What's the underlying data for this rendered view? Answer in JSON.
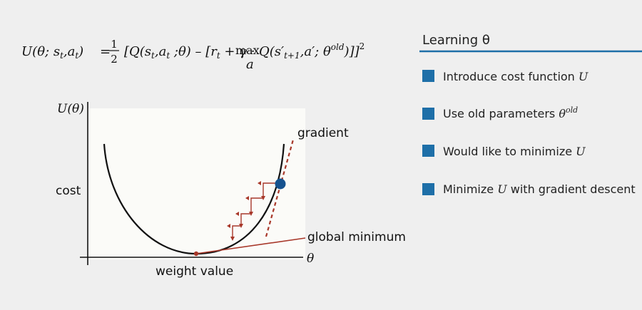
{
  "formula": {
    "lhs": "U(θ; s",
    "lhs_sub_t": "t",
    "lhs_comma": ",a",
    "lhs_sub_t2": "t",
    "lhs_close": ")",
    "equals": "=",
    "frac_num": "1",
    "frac_den": "2",
    "bracket_open": "[Q(s",
    "q_sub_t": "t",
    "q_comma": ",a",
    "q_sub_t2": "t",
    "q_theta": " ;θ) – [r",
    "r_sub": "t",
    "gamma": " + γ ·",
    "max": "max",
    "max_sub": "a",
    "q2": "Q(s′",
    "q2_sub": "t+1",
    "q2_rest": ",a′; θ",
    "q2_sup": "old",
    "close": ")]]",
    "power": "2"
  },
  "diagram": {
    "y_axis_label": "U(θ)",
    "y_side_label": "cost",
    "x_axis_label": "weight value",
    "x_axis_symbol": "θ",
    "gradient_label": "gradient",
    "minimum_label": "global minimum",
    "colors": {
      "curve": "#111111",
      "accent": "#a8382a",
      "point": "#15528f",
      "panel": "#fbfbf8"
    }
  },
  "sidebar": {
    "title": "Learning θ",
    "accent": "#1e6fa8",
    "items": [
      {
        "text": "Introduce cost function ",
        "math": "U",
        "sup": ""
      },
      {
        "text": "Use old parameters ",
        "math": "θ",
        "sup": "old"
      },
      {
        "text": "Would like to minimize ",
        "math": "U",
        "sup": ""
      },
      {
        "text": "Minimize ",
        "math": "U",
        "sup": "",
        "tail": " with gradient descent"
      }
    ]
  }
}
